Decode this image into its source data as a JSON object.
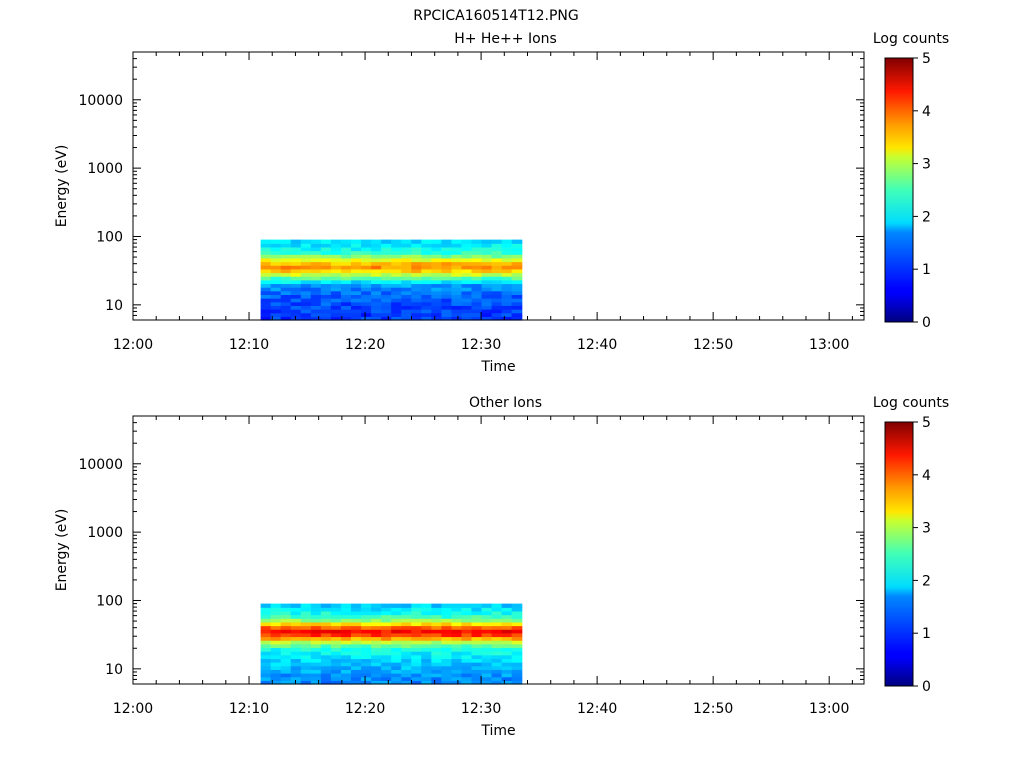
{
  "figure_title": "RPCICA160514T12.PNG",
  "chart_data": [
    {
      "type": "heatmap",
      "title": "H+ He++ Ions",
      "xlabel": "Time",
      "ylabel": "Energy (eV)",
      "x_ticks": [
        "12:00",
        "12:10",
        "12:20",
        "12:30",
        "12:40",
        "12:50",
        "13:00"
      ],
      "y_ticks": [
        "10",
        "100",
        "1000",
        "10000"
      ],
      "y_scale": "log",
      "ylim": [
        6,
        50000
      ],
      "xlim_minutes": [
        0,
        63
      ],
      "data_extent": {
        "t_start_minutes": 11,
        "t_end_minutes": 33.5,
        "e_min": 6,
        "e_max": 90
      },
      "energy_profile": [
        {
          "energy": 7,
          "log_counts": 0.9
        },
        {
          "energy": 10,
          "log_counts": 1.0
        },
        {
          "energy": 14,
          "log_counts": 1.1
        },
        {
          "energy": 20,
          "log_counts": 1.4
        },
        {
          "energy": 25,
          "log_counts": 2.3
        },
        {
          "energy": 30,
          "log_counts": 3.2
        },
        {
          "energy": 35,
          "log_counts": 3.7
        },
        {
          "energy": 42,
          "log_counts": 3.4
        },
        {
          "energy": 50,
          "log_counts": 2.6
        },
        {
          "energy": 60,
          "log_counts": 2.0
        },
        {
          "energy": 75,
          "log_counts": 1.8
        },
        {
          "energy": 88,
          "log_counts": 1.7
        }
      ],
      "colorbar": {
        "label": "Log counts",
        "min": 0,
        "max": 5,
        "ticks": [
          "0",
          "1",
          "2",
          "3",
          "4",
          "5"
        ]
      }
    },
    {
      "type": "heatmap",
      "title": "Other Ions",
      "xlabel": "Time",
      "ylabel": "Energy (eV)",
      "x_ticks": [
        "12:00",
        "12:10",
        "12:20",
        "12:30",
        "12:40",
        "12:50",
        "13:00"
      ],
      "y_ticks": [
        "10",
        "100",
        "1000",
        "10000"
      ],
      "y_scale": "log",
      "ylim": [
        6,
        50000
      ],
      "xlim_minutes": [
        0,
        63
      ],
      "data_extent": {
        "t_start_minutes": 11,
        "t_end_minutes": 33.5,
        "e_min": 6,
        "e_max": 90
      },
      "energy_profile": [
        {
          "energy": 7,
          "log_counts": 1.3
        },
        {
          "energy": 10,
          "log_counts": 1.5
        },
        {
          "energy": 14,
          "log_counts": 1.7
        },
        {
          "energy": 20,
          "log_counts": 2.0
        },
        {
          "energy": 25,
          "log_counts": 2.8
        },
        {
          "energy": 30,
          "log_counts": 4.0
        },
        {
          "energy": 35,
          "log_counts": 4.4
        },
        {
          "energy": 42,
          "log_counts": 3.8
        },
        {
          "energy": 50,
          "log_counts": 2.7
        },
        {
          "energy": 60,
          "log_counts": 2.1
        },
        {
          "energy": 75,
          "log_counts": 1.8
        },
        {
          "energy": 88,
          "log_counts": 1.6
        }
      ],
      "colorbar": {
        "label": "Log counts",
        "min": 0,
        "max": 5,
        "ticks": [
          "0",
          "1",
          "2",
          "3",
          "4",
          "5"
        ]
      }
    }
  ]
}
